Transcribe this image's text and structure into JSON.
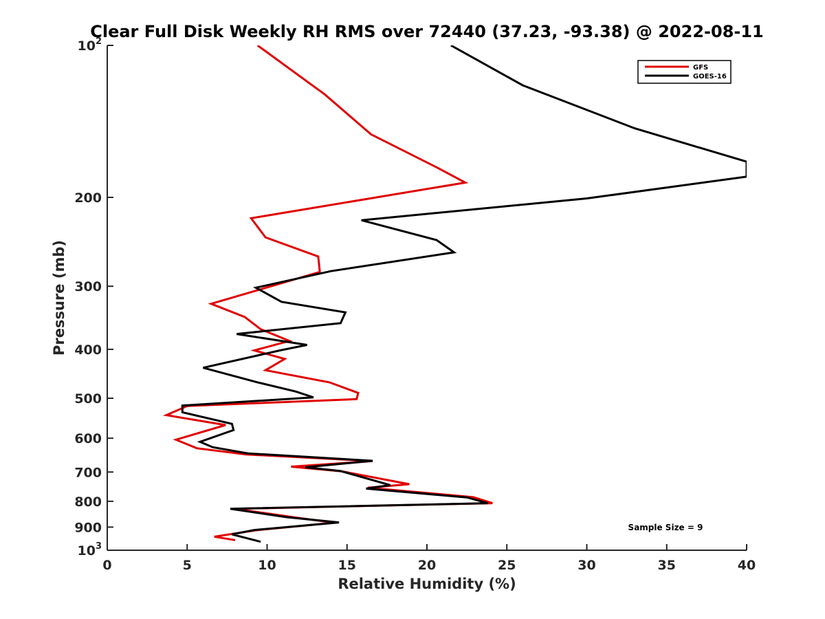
{
  "chart_data": {
    "type": "line",
    "title": "Clear Full Disk Weekly RH RMS over 72440 (37.23, -93.38) @ 2022-08-11",
    "xlabel": "Relative Humidity (%)",
    "ylabel": "Pressure (mb)",
    "xlim": [
      0,
      40
    ],
    "ylim": [
      100,
      1000
    ],
    "y_scale": "log",
    "y_reversed": true,
    "grid": false,
    "legend_position": "top-right",
    "x_ticks": [
      "0",
      "5",
      "10",
      "15",
      "20",
      "25",
      "30",
      "35",
      "40"
    ],
    "y_ticks": [
      {
        "value": 100,
        "base": "10",
        "exp": "2"
      },
      {
        "value": 200,
        "label": "200"
      },
      {
        "value": 300,
        "label": "300"
      },
      {
        "value": 400,
        "label": "400"
      },
      {
        "value": 500,
        "label": "500"
      },
      {
        "value": 600,
        "label": "600"
      },
      {
        "value": 700,
        "label": "700"
      },
      {
        "value": 800,
        "label": "800"
      },
      {
        "value": 900,
        "label": "900"
      },
      {
        "value": 1000,
        "base": "10",
        "exp": "3"
      }
    ],
    "annotation": "Sample Size = 9",
    "series": [
      {
        "name": "GFS",
        "color": "#e00000",
        "points": [
          [
            9.4,
            100
          ],
          [
            13.6,
            125
          ],
          [
            16.5,
            150
          ],
          [
            20.7,
            175
          ],
          [
            22.4,
            187
          ],
          [
            9.0,
            220
          ],
          [
            9.9,
            240
          ],
          [
            13.2,
            262
          ],
          [
            13.3,
            281
          ],
          [
            6.5,
            325
          ],
          [
            8.6,
            345
          ],
          [
            9.6,
            365
          ],
          [
            11.4,
            385
          ],
          [
            9.2,
            402
          ],
          [
            11.1,
            418
          ],
          [
            9.9,
            440
          ],
          [
            13.9,
            465
          ],
          [
            15.7,
            488
          ],
          [
            15.6,
            502
          ],
          [
            5.0,
            518
          ],
          [
            3.7,
            540
          ],
          [
            7.4,
            565
          ],
          [
            4.3,
            604
          ],
          [
            5.6,
            628
          ],
          [
            8.7,
            646
          ],
          [
            16.6,
            666
          ],
          [
            11.5,
            683
          ],
          [
            14.7,
            698
          ],
          [
            18.9,
            740
          ],
          [
            16.3,
            752
          ],
          [
            22.9,
            785
          ],
          [
            24.1,
            807
          ],
          [
            8.0,
            828
          ],
          [
            11.6,
            860
          ],
          [
            14.2,
            882
          ],
          [
            9.3,
            913
          ],
          [
            6.7,
            940
          ],
          [
            8.0,
            955
          ]
        ]
      },
      {
        "name": "GOES-16",
        "color": "#000000",
        "points": [
          [
            21.5,
            100
          ],
          [
            26.0,
            120
          ],
          [
            33.0,
            146
          ],
          [
            40.0,
            170
          ],
          [
            40.0,
            182
          ],
          [
            30.0,
            201
          ],
          [
            15.9,
            222
          ],
          [
            20.6,
            243
          ],
          [
            21.7,
            257
          ],
          [
            14.0,
            280
          ],
          [
            9.3,
            302
          ],
          [
            10.9,
            322
          ],
          [
            14.9,
            338
          ],
          [
            14.6,
            355
          ],
          [
            8.1,
            373
          ],
          [
            12.5,
            392
          ],
          [
            10.8,
            402
          ],
          [
            6.0,
            435
          ],
          [
            9.4,
            465
          ],
          [
            11.8,
            485
          ],
          [
            12.9,
            498
          ],
          [
            4.7,
            517
          ],
          [
            4.7,
            533
          ],
          [
            7.8,
            562
          ],
          [
            7.9,
            578
          ],
          [
            5.8,
            610
          ],
          [
            6.6,
            625
          ],
          [
            8.8,
            643
          ],
          [
            16.6,
            665
          ],
          [
            12.4,
            685
          ],
          [
            14.6,
            697
          ],
          [
            17.7,
            743
          ],
          [
            16.2,
            755
          ],
          [
            22.5,
            786
          ],
          [
            23.8,
            807
          ],
          [
            7.7,
            828
          ],
          [
            11.2,
            860
          ],
          [
            14.5,
            881
          ],
          [
            9.2,
            912
          ],
          [
            7.8,
            930
          ],
          [
            9.6,
            962
          ]
        ]
      }
    ]
  }
}
